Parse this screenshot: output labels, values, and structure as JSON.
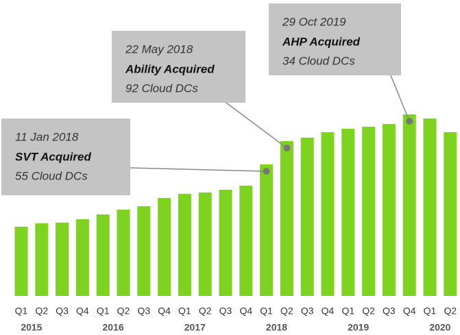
{
  "chart_data": {
    "type": "bar",
    "categories": [
      "Q1",
      "Q2",
      "Q3",
      "Q4",
      "Q1",
      "Q2",
      "Q3",
      "Q4",
      "Q1",
      "Q2",
      "Q3",
      "Q4",
      "Q1",
      "Q2",
      "Q3",
      "Q4",
      "Q1",
      "Q2",
      "Q3",
      "Q4",
      "Q1",
      "Q2"
    ],
    "years": [
      "2015",
      "2016",
      "2017",
      "2018",
      "2019",
      "2020"
    ],
    "values": [
      101,
      106,
      107,
      112,
      119,
      126,
      131,
      143,
      149,
      151,
      155,
      161,
      192,
      226,
      231,
      239,
      244,
      247,
      251,
      265,
      259,
      239
    ],
    "color": "#7ed321",
    "ylim": [
      0,
      280
    ],
    "annotations": [
      {
        "date": "11 Jan 2018",
        "title": "SVT Acquired",
        "detail": "55 Cloud DCs",
        "bar": 12
      },
      {
        "date": "22 May 2018",
        "title": "Ability Acquired",
        "detail": "92 Cloud DCs",
        "bar": 13
      },
      {
        "date": "29 Oct 2019",
        "title": "AHP Acquired",
        "detail": "34 Cloud DCs",
        "bar": 19
      }
    ]
  }
}
